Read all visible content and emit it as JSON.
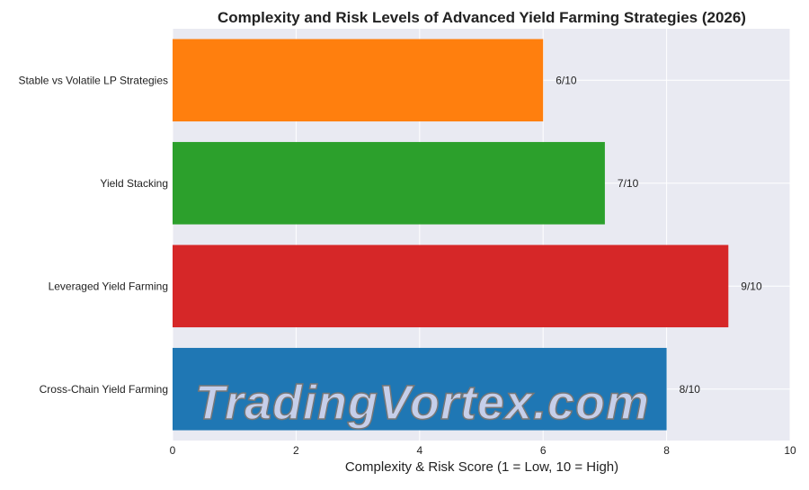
{
  "chart_data": {
    "type": "bar",
    "orientation": "horizontal",
    "title": "Complexity and Risk Levels of Advanced Yield Farming Strategies (2026)",
    "xlabel": "Complexity & Risk Score (1 = Low, 10 = High)",
    "ylabel": "",
    "xlim": [
      0,
      10
    ],
    "xticks": [
      0,
      2,
      4,
      6,
      8,
      10
    ],
    "grid": true,
    "categories": [
      "Cross-Chain Yield Farming",
      "Leveraged Yield Farming",
      "Yield Stacking",
      "Stable vs Volatile LP Strategies"
    ],
    "values": [
      8,
      9,
      7,
      6
    ],
    "data_labels": [
      "8/10",
      "9/10",
      "7/10",
      "6/10"
    ],
    "colors": [
      "#1f77b4",
      "#d62728",
      "#2ca02c",
      "#ff7f0e"
    ],
    "background_color": "#e9eaf2"
  },
  "watermark": "TradingVortex.com"
}
